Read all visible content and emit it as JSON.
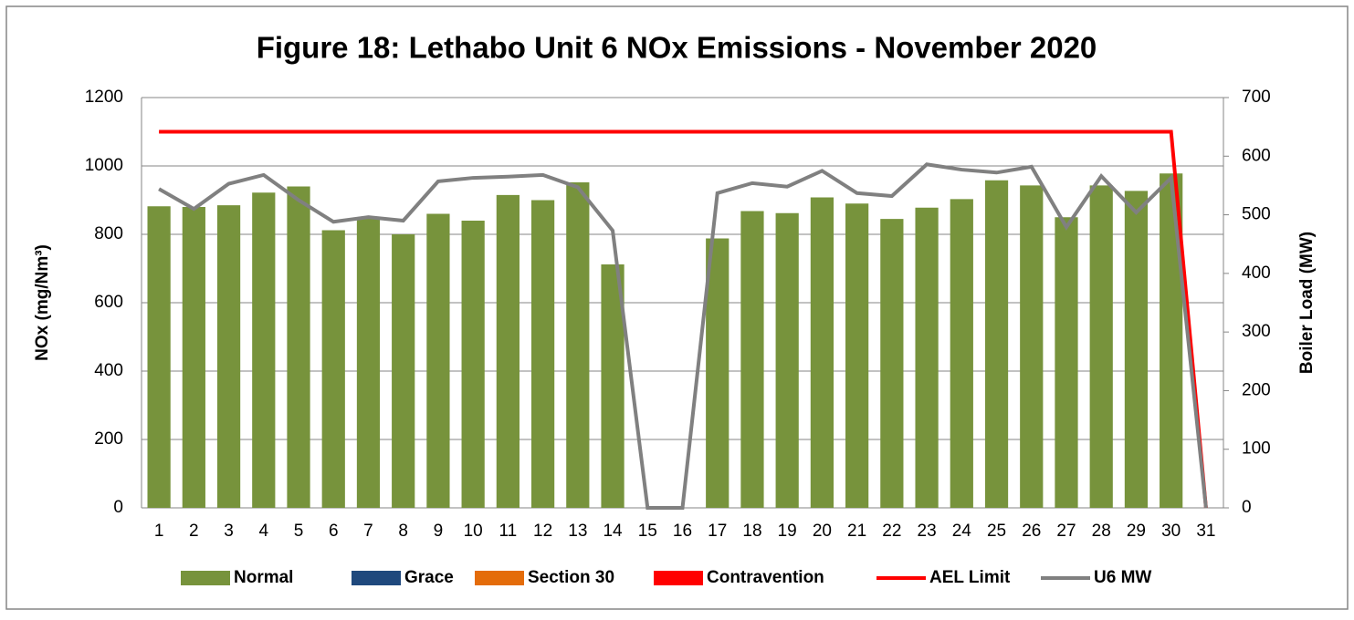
{
  "chart_data": {
    "type": "bar",
    "title": "Figure 18: Lethabo Unit 6 NOx Emissions -  November 2020",
    "ylabel": "NOx (mg/Nm³)",
    "y2label": "Boiler Load (MW)",
    "categories": [
      "1",
      "2",
      "3",
      "4",
      "5",
      "6",
      "7",
      "8",
      "9",
      "10",
      "11",
      "12",
      "13",
      "14",
      "15",
      "16",
      "17",
      "18",
      "19",
      "20",
      "21",
      "22",
      "23",
      "24",
      "25",
      "26",
      "27",
      "28",
      "29",
      "30",
      "31"
    ],
    "series": [
      {
        "name": "Normal",
        "kind": "bar",
        "color": "#77933c",
        "values": [
          882,
          880,
          885,
          922,
          940,
          812,
          848,
          800,
          860,
          840,
          915,
          900,
          952,
          712,
          null,
          null,
          788,
          868,
          862,
          908,
          890,
          845,
          878,
          903,
          958,
          943,
          850,
          943,
          927,
          978,
          null
        ]
      },
      {
        "name": "Grace",
        "kind": "bar",
        "color": "#1f497d",
        "values": [
          null,
          null,
          null,
          null,
          null,
          null,
          null,
          null,
          null,
          null,
          null,
          null,
          null,
          null,
          null,
          null,
          null,
          null,
          null,
          null,
          null,
          null,
          null,
          null,
          null,
          null,
          null,
          null,
          null,
          null,
          null
        ]
      },
      {
        "name": "Section 30",
        "kind": "bar",
        "color": "#e46c0a",
        "values": [
          null,
          null,
          null,
          null,
          null,
          null,
          null,
          null,
          null,
          null,
          null,
          null,
          null,
          null,
          null,
          null,
          null,
          null,
          null,
          null,
          null,
          null,
          null,
          null,
          null,
          null,
          null,
          null,
          null,
          null,
          null
        ]
      },
      {
        "name": "Contravention",
        "kind": "bar",
        "color": "#ff0000",
        "values": [
          null,
          null,
          null,
          null,
          null,
          null,
          null,
          null,
          null,
          null,
          null,
          null,
          null,
          null,
          null,
          null,
          null,
          null,
          null,
          null,
          null,
          null,
          null,
          null,
          null,
          null,
          null,
          null,
          null,
          null,
          null
        ]
      },
      {
        "name": "AEL Limit",
        "kind": "line",
        "color": "#ff0000",
        "values": [
          1100,
          1100,
          1100,
          1100,
          1100,
          1100,
          1100,
          1100,
          1100,
          1100,
          1100,
          1100,
          1100,
          1100,
          1100,
          1100,
          1100,
          1100,
          1100,
          1100,
          1100,
          1100,
          1100,
          1100,
          1100,
          1100,
          1100,
          1100,
          1100,
          1100,
          0
        ]
      },
      {
        "name": "U6 MW",
        "kind": "line",
        "axis": "y2",
        "color": "#808080",
        "values": [
          544,
          510,
          553,
          568,
          525,
          488,
          496,
          490,
          557,
          563,
          565,
          568,
          547,
          473,
          0,
          0,
          537,
          554,
          548,
          575,
          537,
          532,
          586,
          577,
          572,
          582,
          479,
          566,
          504,
          563,
          0
        ]
      }
    ],
    "ylim": [
      0,
      1200
    ],
    "yticks": [
      0,
      200,
      400,
      600,
      800,
      1000,
      1200
    ],
    "y2lim": [
      0,
      700
    ],
    "y2ticks": [
      0,
      100,
      200,
      300,
      400,
      500,
      600,
      700
    ],
    "grid": true,
    "legend": "bottom"
  }
}
